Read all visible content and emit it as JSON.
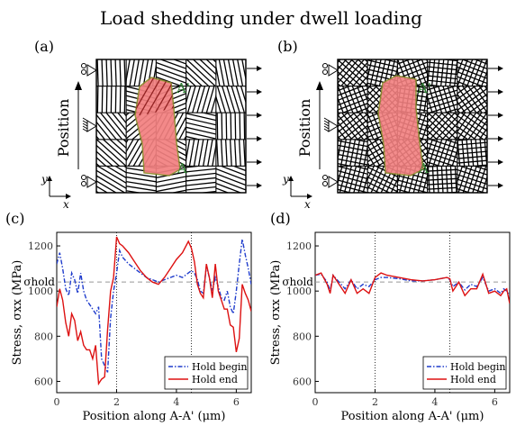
{
  "figure": {
    "title": "Load shedding under dwell loading",
    "panel_labels": [
      "(a)",
      "(b)",
      "(c)",
      "(d)"
    ],
    "schematic": {
      "position_label": "Position",
      "axis_y": "y",
      "axis_x": "x",
      "point_top": "A'",
      "point_bottom": "A",
      "colors": {
        "grain_stroke": "#000000",
        "highlight_fill": "#f28080",
        "highlight_edge": "#8a8a2a",
        "marker_text": "#2e7d32"
      }
    }
  },
  "chart_data": [
    {
      "type": "line",
      "panel": "(c)",
      "xlabel": "Position along A-A' (μm)",
      "ylabel": "Stress, σxx (MPa)",
      "xlim": [
        0,
        6.5
      ],
      "ylim": [
        550,
        1260
      ],
      "xticks": [
        0,
        2,
        4,
        6
      ],
      "yticks": [
        600,
        800,
        1000,
        1200
      ],
      "reference_line": {
        "label": "σhold",
        "y": 1040
      },
      "vlines": [
        2.0,
        4.5
      ],
      "legend": "bottom-right",
      "series": [
        {
          "name": "Hold begin",
          "color": "#1f3ccc",
          "dash": "dashdot",
          "x": [
            0,
            0.1,
            0.2,
            0.3,
            0.4,
            0.5,
            0.6,
            0.7,
            0.8,
            0.9,
            1.0,
            1.1,
            1.2,
            1.3,
            1.4,
            1.5,
            1.6,
            1.7,
            1.8,
            1.9,
            2.0,
            2.1,
            2.2,
            2.4,
            2.6,
            2.8,
            3.0,
            3.2,
            3.4,
            3.6,
            3.8,
            4.0,
            4.2,
            4.4,
            4.5,
            4.6,
            4.7,
            4.8,
            4.9,
            5.0,
            5.1,
            5.2,
            5.3,
            5.4,
            5.5,
            5.6,
            5.7,
            5.8,
            5.9,
            6.0,
            6.1,
            6.2,
            6.3,
            6.4,
            6.5
          ],
          "y": [
            1120,
            1170,
            1100,
            1010,
            980,
            1080,
            1050,
            990,
            1080,
            1000,
            960,
            940,
            920,
            900,
            930,
            700,
            670,
            640,
            880,
            1000,
            1080,
            1180,
            1150,
            1120,
            1100,
            1080,
            1060,
            1050,
            1040,
            1050,
            1060,
            1070,
            1060,
            1080,
            1090,
            1080,
            1050,
            1000,
            990,
            1110,
            1060,
            1000,
            1060,
            1020,
            970,
            960,
            1000,
            930,
            900,
            1000,
            1120,
            1230,
            1160,
            1100,
            1030
          ]
        },
        {
          "name": "Hold end",
          "color": "#dd1111",
          "dash": "solid",
          "x": [
            0,
            0.1,
            0.2,
            0.3,
            0.4,
            0.5,
            0.6,
            0.7,
            0.8,
            0.9,
            1.0,
            1.1,
            1.2,
            1.3,
            1.4,
            1.5,
            1.6,
            1.7,
            1.8,
            1.9,
            2.0,
            2.1,
            2.2,
            2.4,
            2.6,
            2.8,
            3.0,
            3.2,
            3.4,
            3.6,
            3.8,
            4.0,
            4.2,
            4.4,
            4.5,
            4.6,
            4.7,
            4.8,
            4.9,
            5.0,
            5.1,
            5.2,
            5.3,
            5.4,
            5.5,
            5.6,
            5.7,
            5.8,
            5.9,
            6.0,
            6.1,
            6.2,
            6.3,
            6.4,
            6.5
          ],
          "y": [
            930,
            1010,
            960,
            860,
            800,
            900,
            870,
            780,
            820,
            760,
            740,
            740,
            700,
            760,
            590,
            610,
            620,
            830,
            1000,
            1060,
            1240,
            1210,
            1200,
            1170,
            1130,
            1090,
            1060,
            1040,
            1030,
            1060,
            1100,
            1140,
            1170,
            1220,
            1190,
            1130,
            1030,
            990,
            970,
            1120,
            1060,
            970,
            1120,
            1000,
            960,
            920,
            920,
            850,
            840,
            730,
            790,
            1030,
            990,
            960,
            910
          ]
        }
      ]
    },
    {
      "type": "line",
      "panel": "(d)",
      "xlabel": "Position along A-A' (μm)",
      "ylabel": "Stress, σxx (MPa)",
      "xlim": [
        0,
        6.5
      ],
      "ylim": [
        550,
        1260
      ],
      "xticks": [
        0,
        2,
        4,
        6
      ],
      "yticks": [
        600,
        800,
        1000,
        1200
      ],
      "reference_line": {
        "label": "σhold",
        "y": 1040
      },
      "vlines": [
        2.0,
        4.5
      ],
      "legend": "bottom-right",
      "series": [
        {
          "name": "Hold begin",
          "color": "#1f3ccc",
          "dash": "dashdot",
          "x": [
            0,
            0.2,
            0.4,
            0.5,
            0.6,
            0.8,
            1.0,
            1.2,
            1.4,
            1.6,
            1.8,
            2.0,
            2.2,
            2.4,
            2.8,
            3.2,
            3.6,
            4.0,
            4.4,
            4.5,
            4.6,
            4.8,
            5.0,
            5.2,
            5.4,
            5.6,
            5.8,
            6.0,
            6.2,
            6.3,
            6.4,
            6.5
          ],
          "y": [
            1070,
            1075,
            1040,
            1000,
            1070,
            1040,
            1010,
            1050,
            1010,
            1030,
            1020,
            1050,
            1060,
            1060,
            1055,
            1045,
            1045,
            1050,
            1060,
            1050,
            1020,
            1040,
            1005,
            1030,
            1020,
            1060,
            1000,
            1010,
            990,
            1010,
            1000,
            980
          ]
        },
        {
          "name": "Hold end",
          "color": "#dd1111",
          "dash": "solid",
          "x": [
            0,
            0.2,
            0.4,
            0.5,
            0.6,
            0.8,
            1.0,
            1.2,
            1.4,
            1.6,
            1.8,
            2.0,
            2.2,
            2.4,
            2.8,
            3.2,
            3.6,
            4.0,
            4.4,
            4.5,
            4.6,
            4.8,
            5.0,
            5.2,
            5.4,
            5.6,
            5.8,
            6.0,
            6.2,
            6.3,
            6.4,
            6.5
          ],
          "y": [
            1070,
            1080,
            1030,
            990,
            1070,
            1030,
            990,
            1050,
            990,
            1010,
            990,
            1060,
            1080,
            1070,
            1060,
            1050,
            1045,
            1050,
            1060,
            1055,
            1000,
            1040,
            980,
            1010,
            1010,
            1075,
            990,
            1000,
            980,
            1000,
            1010,
            945
          ]
        }
      ]
    }
  ]
}
